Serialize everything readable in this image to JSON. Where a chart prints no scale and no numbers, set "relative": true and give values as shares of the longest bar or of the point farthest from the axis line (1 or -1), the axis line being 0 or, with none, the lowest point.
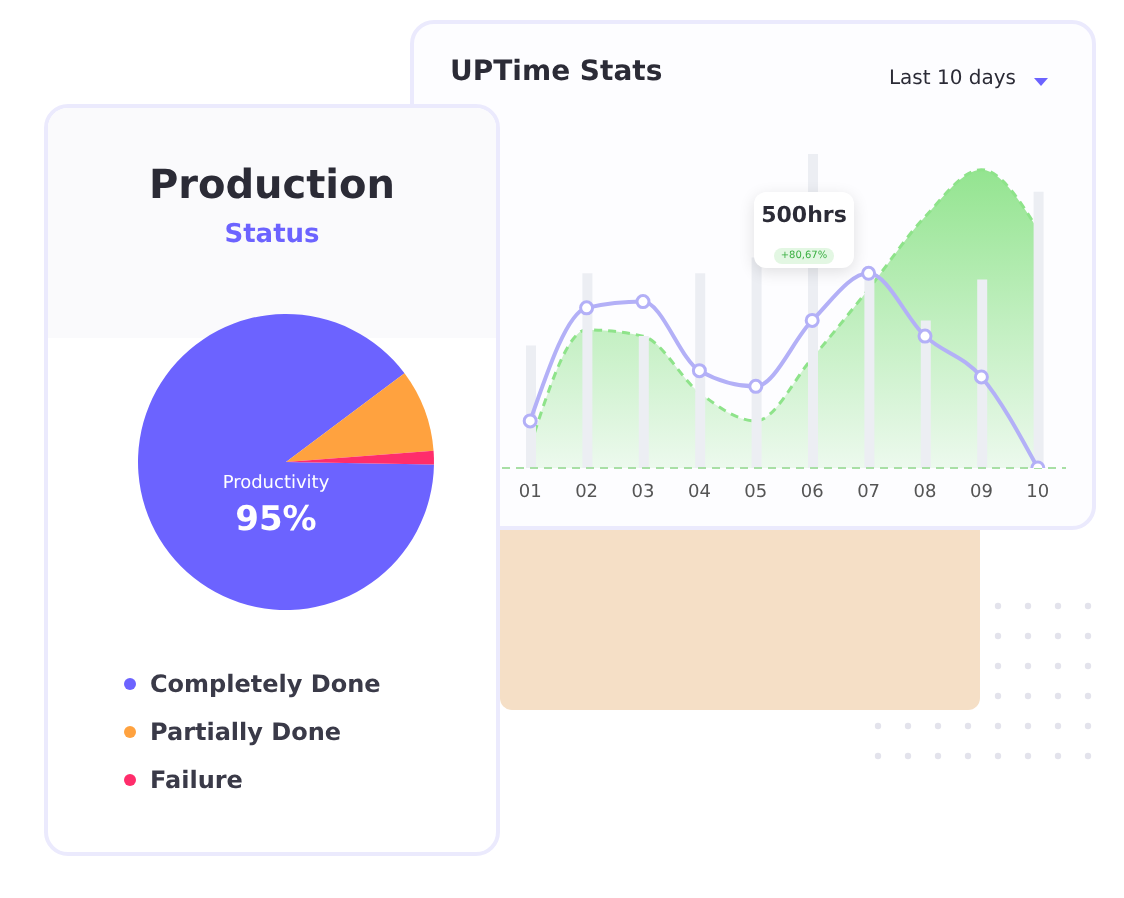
{
  "chart_data": [
    {
      "type": "pie",
      "title": "Production",
      "subtitle": "Status",
      "categories": [
        "Completely Done",
        "Partially Done",
        "Failure"
      ],
      "values": [
        89.5,
        9,
        1.5
      ],
      "colors": [
        "#6c63ff",
        "#ffa23f",
        "#ff2d6b"
      ],
      "annotations": [
        "Productivity",
        "95%"
      ],
      "legend": "bottom"
    },
    {
      "type": "area",
      "title": "UPTime Stats",
      "annotations": [
        "Last 10 days",
        "500hrs",
        "+80,67%"
      ],
      "categories": [
        "01",
        "02",
        "03",
        "04",
        "05",
        "06",
        "07",
        "08",
        "09",
        "10"
      ],
      "relative": true,
      "series": [
        {
          "type": "bar",
          "color": "#eceef3",
          "values": [
            0.39,
            0.62,
            0.42,
            0.62,
            0.67,
            1,
            0.62,
            0.47,
            0.6,
            0.88
          ]
        },
        {
          "type": "area",
          "color": "#8ee38a",
          "line_style": "dashed",
          "values": [
            0.07,
            0.44,
            0.42,
            0.24,
            0.15,
            0.35,
            0.57,
            0.8,
            0.95,
            0.76
          ]
        },
        {
          "type": "line",
          "color": "#b3b0f7",
          "marker": "circle",
          "values": [
            0.15,
            0.51,
            0.53,
            0.31,
            0.26,
            0.47,
            0.62,
            0.42,
            0.29,
            0
          ]
        }
      ]
    }
  ]
}
